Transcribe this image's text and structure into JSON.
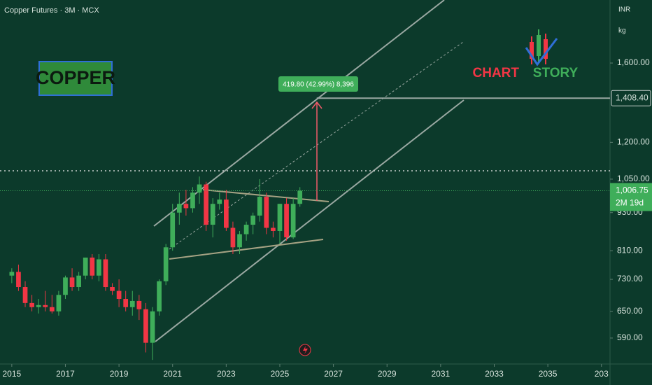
{
  "chart_data": {
    "type": "candlestick",
    "title": "Copper Futures · 3M · MCX",
    "badge": "COPPER",
    "logo_text": [
      "CHART",
      "STORY"
    ],
    "currency": "INR",
    "unit": "kg",
    "measure_label": "419.80 (42.99%) 8,396",
    "countdown": "2M 19d",
    "log_scale": true,
    "up_color": "#3fae5a",
    "down_color": "#f23645",
    "x": [
      2015,
      2015.25,
      2015.5,
      2015.75,
      2016,
      2016.25,
      2016.5,
      2016.75,
      2017,
      2017.25,
      2017.5,
      2017.75,
      2018,
      2018.25,
      2018.5,
      2018.75,
      2019,
      2019.25,
      2019.5,
      2019.75,
      2020,
      2020.25,
      2020.5,
      2020.75,
      2021,
      2021.25,
      2021.5,
      2021.75,
      2022,
      2022.25,
      2022.5,
      2022.75,
      2023,
      2023.25,
      2023.5,
      2023.75,
      2024,
      2024.25,
      2024.5,
      2024.75,
      2025,
      2025.25,
      2025.5,
      2025.75
    ],
    "open": [
      740,
      750,
      710,
      670,
      660,
      665,
      660,
      650,
      690,
      735,
      710,
      740,
      790,
      740,
      785,
      710,
      700,
      680,
      660,
      675,
      655,
      580,
      650,
      725,
      820,
      930,
      960,
      945,
      1000,
      1030,
      890,
      960,
      975,
      880,
      820,
      860,
      890,
      920,
      985,
      880,
      870,
      960,
      850,
      960
    ],
    "high": [
      760,
      770,
      725,
      690,
      680,
      700,
      690,
      700,
      740,
      760,
      750,
      790,
      800,
      800,
      800,
      720,
      730,
      700,
      700,
      690,
      670,
      660,
      730,
      830,
      960,
      1000,
      1010,
      1020,
      1060,
      1040,
      980,
      1000,
      1010,
      900,
      870,
      900,
      930,
      1050,
      1000,
      900,
      960,
      980,
      980,
      1020
    ],
    "low": [
      720,
      700,
      660,
      650,
      645,
      650,
      645,
      640,
      680,
      700,
      700,
      730,
      730,
      725,
      700,
      690,
      660,
      650,
      640,
      630,
      560,
      545,
      640,
      715,
      810,
      890,
      920,
      930,
      960,
      870,
      850,
      940,
      870,
      800,
      800,
      840,
      860,
      900,
      860,
      850,
      830,
      840,
      845,
      950
    ],
    "close": [
      750,
      710,
      670,
      660,
      665,
      660,
      650,
      690,
      735,
      710,
      740,
      790,
      740,
      785,
      710,
      700,
      680,
      660,
      675,
      655,
      580,
      650,
      725,
      820,
      930,
      960,
      945,
      1000,
      1030,
      890,
      960,
      975,
      880,
      820,
      860,
      890,
      920,
      985,
      880,
      870,
      960,
      850,
      960,
      1006.75
    ],
    "xlim": [
      2014.56,
      2037.32
    ],
    "ylim": [
      537,
      2011
    ],
    "xticks": [
      2015,
      2017,
      2019,
      2021,
      2023,
      2025,
      2027,
      2029,
      2031,
      2033,
      2035,
      {
        "value": 2037,
        "label": "203"
      }
    ],
    "yticks": [
      {
        "value": 590,
        "label": "590.00"
      },
      {
        "value": 650,
        "label": "650.00"
      },
      {
        "value": 730,
        "label": "730.00"
      },
      {
        "value": 810,
        "label": "810.00"
      },
      {
        "value": 930,
        "label": "930.00"
      },
      {
        "value": 1050,
        "label": "1,050.00"
      },
      {
        "value": 1200,
        "label": "1,200.00"
      },
      {
        "value": 1600,
        "label": "1,600.00"
      }
    ],
    "price_labels": [
      {
        "value": 1408.4,
        "label": "1,408.40"
      },
      {
        "value": 1006.75,
        "label": "1,006.75"
      }
    ]
  }
}
